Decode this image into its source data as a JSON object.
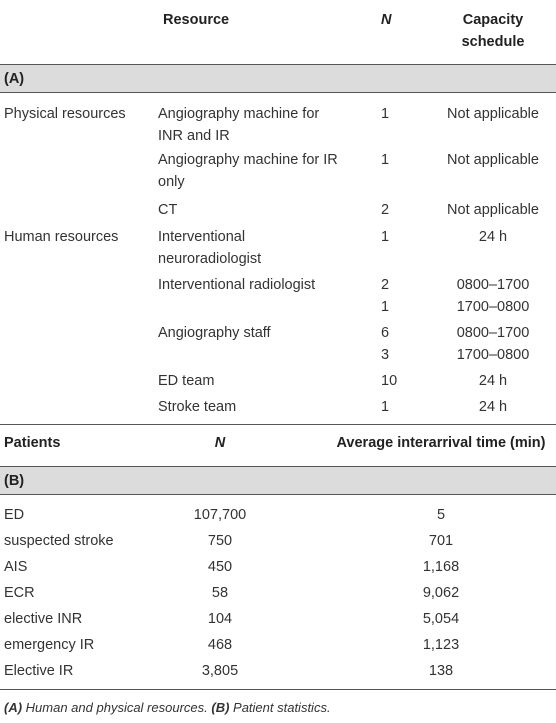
{
  "tableA": {
    "header": {
      "resource": "Resource",
      "n": "N",
      "capacity_line1": "Capacity",
      "capacity_line2": "schedule"
    },
    "section_label": "(A)",
    "rows": [
      {
        "category": "Physical resources",
        "res1": "Angiography machine for",
        "res2": "INR and IR",
        "n1": "1",
        "n2": "",
        "c1": "Not applicable",
        "c2": ""
      },
      {
        "category": "",
        "res1": "Angiography machine for IR",
        "res2": "only",
        "n1": "1",
        "n2": "",
        "c1": "Not applicable",
        "c2": ""
      },
      {
        "category": "",
        "res1": "CT",
        "res2": "",
        "n1": "2",
        "n2": "",
        "c1": "Not applicable",
        "c2": ""
      },
      {
        "category": "Human resources",
        "res1": "Interventional",
        "res2": "neuroradiologist",
        "n1": "1",
        "n2": "",
        "c1": "24 h",
        "c2": ""
      },
      {
        "category": "",
        "res1": "Interventional radiologist",
        "res2": "",
        "n1": "2",
        "n2": "1",
        "c1": "0800–1700",
        "c2": "1700–0800"
      },
      {
        "category": "",
        "res1": "Angiography staff",
        "res2": "",
        "n1": "6",
        "n2": "3",
        "c1": "0800–1700",
        "c2": "1700–0800"
      },
      {
        "category": "",
        "res1": "ED team",
        "res2": "",
        "n1": "10",
        "n2": "",
        "c1": "24 h",
        "c2": ""
      },
      {
        "category": "",
        "res1": "Stroke team",
        "res2": "",
        "n1": "1",
        "n2": "",
        "c1": "24 h",
        "c2": ""
      }
    ]
  },
  "tableB": {
    "header": {
      "patients": "Patients",
      "n": "N",
      "interarrival": "Average interarrival time (min)"
    },
    "section_label": "(B)",
    "rows": [
      {
        "patient": "ED",
        "n": "107,700",
        "time": "5"
      },
      {
        "patient": "suspected stroke",
        "n": "750",
        "time": "701"
      },
      {
        "patient": "AIS",
        "n": "450",
        "time": "1,168"
      },
      {
        "patient": "ECR",
        "n": "58",
        "time": "9,062"
      },
      {
        "patient": "elective INR",
        "n": "104",
        "time": "5,054"
      },
      {
        "patient": "emergency IR",
        "n": "468",
        "time": "1,123"
      },
      {
        "patient": "Elective IR",
        "n": "3,805",
        "time": "138"
      }
    ]
  },
  "caption": {
    "a_label": "(A)",
    "a_text": " Human and physical resources. ",
    "b_label": "(B)",
    "b_text": " Patient statistics."
  }
}
